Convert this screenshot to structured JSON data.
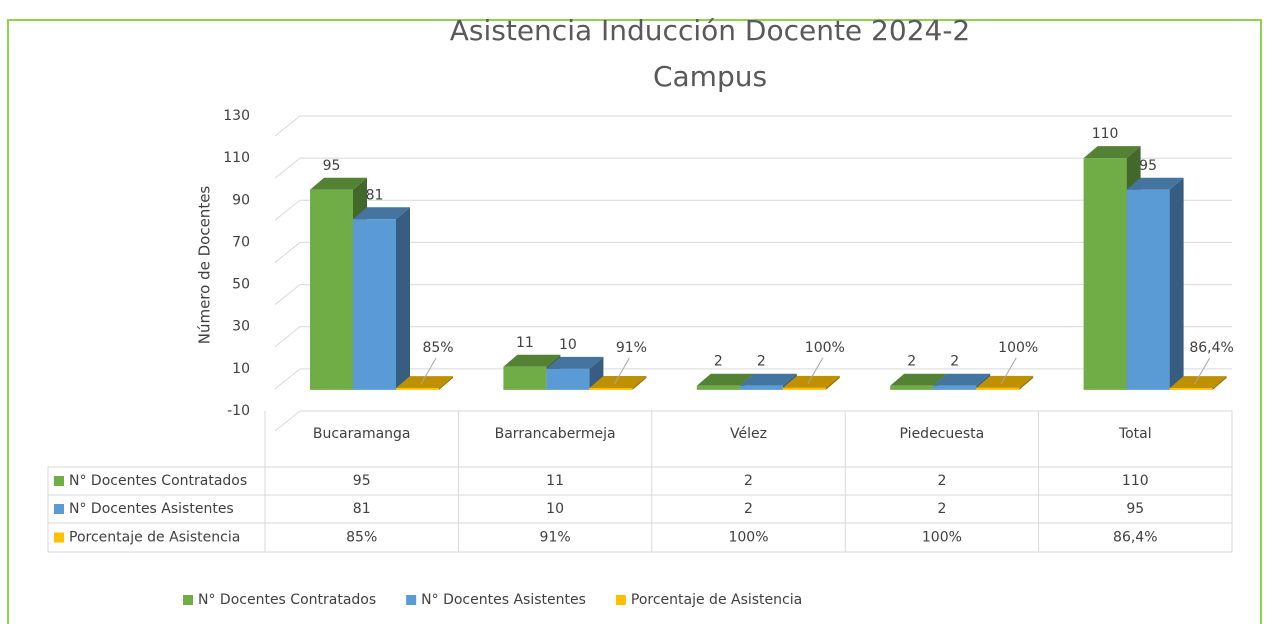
{
  "chart_data": {
    "type": "bar3d",
    "title": "Asistencia Inducción Docente 2024-2",
    "subtitle": "Campus",
    "y_axis_label": "Número de Docentes",
    "categories": [
      "Bucaramanga",
      "Barrancabermeja",
      "Vélez",
      "Piedecuesta",
      "Total"
    ],
    "series": [
      {
        "name": "N° Docentes Contratados",
        "color": "#70ad47",
        "values": [
          95,
          11,
          2,
          2,
          110
        ]
      },
      {
        "name": "N° Docentes Asistentes",
        "color": "#5b9bd5",
        "values": [
          81,
          10,
          2,
          2,
          95
        ]
      },
      {
        "name": "Porcentaje de Asistencia",
        "color": "#ffc000",
        "values": [
          0.85,
          0.91,
          1,
          1,
          0.864
        ],
        "value_labels": [
          "85%",
          "91%",
          "100%",
          "100%",
          "86,4%"
        ]
      }
    ],
    "ylim": [
      -10,
      130
    ],
    "yticks": [
      -10,
      10,
      30,
      50,
      70,
      90,
      110,
      130
    ],
    "grid": true
  }
}
